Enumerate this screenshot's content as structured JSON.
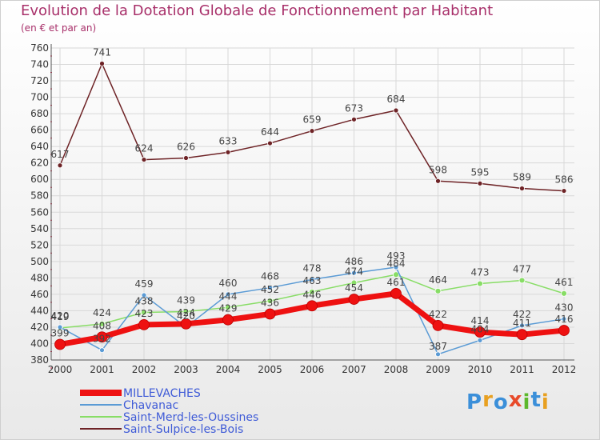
{
  "title": "Evolution de la Dotation Globale de Fonctionnement par Habitant",
  "subtitle": "(en € et par an)",
  "logo": {
    "letters": [
      "P",
      "r",
      "o",
      "x",
      "i",
      "t",
      "i"
    ],
    "colors": [
      "#3b8fd9",
      "#e8a020",
      "#3b8fd9",
      "#e84a2a",
      "#5db82c",
      "#3b8fd9",
      "#e8a020"
    ]
  },
  "chart_data": {
    "type": "line",
    "title": "Evolution de la Dotation Globale de Fonctionnement par Habitant",
    "subtitle": "(en € et par an)",
    "xlabel": "",
    "ylabel": "",
    "ylim": [
      380,
      760
    ],
    "ytick_step": 20,
    "grid": true,
    "legend_position": "bottom-left",
    "x": [
      "2000",
      "2001",
      "2002",
      "2003",
      "2004",
      "2005",
      "2006",
      "2007",
      "2008",
      "2009",
      "2010",
      "2011",
      "2012"
    ],
    "series": [
      {
        "name": "MILLEVACHES",
        "color": "#ee1111",
        "values": [
          399,
          408,
          423,
          424,
          429,
          436,
          446,
          454,
          461,
          422,
          414,
          411,
          416
        ],
        "labels": [
          "399",
          "408",
          "423",
          "424",
          "429",
          "436",
          "446",
          "454",
          "461",
          "422",
          "414",
          "411",
          "416"
        ]
      },
      {
        "name": "Chavanac",
        "color": "#5b9bd5",
        "values": [
          420,
          392,
          459,
          420,
          460,
          468,
          478,
          486,
          493,
          387,
          404,
          422,
          430
        ],
        "labels": [
          "420",
          "392",
          "459",
          "420",
          "460",
          "468",
          "478",
          "486",
          "493",
          "387",
          "404",
          "422",
          "430"
        ]
      },
      {
        "name": "Saint-Merd-les-Oussines",
        "color": "#88dd66",
        "values": [
          419,
          424,
          438,
          439,
          444,
          452,
          463,
          474,
          484,
          464,
          473,
          477,
          461
        ],
        "labels": [
          "419",
          "424",
          "438",
          "439",
          "444",
          "452",
          "463",
          "474",
          "484",
          "464",
          "473",
          "477",
          "461"
        ]
      },
      {
        "name": "Saint-Sulpice-les-Bois",
        "color": "#6e2326",
        "values": [
          617,
          741,
          624,
          626,
          633,
          644,
          659,
          673,
          684,
          598,
          595,
          589,
          586
        ],
        "labels": [
          "617",
          "741",
          "624",
          "626",
          "633",
          "644",
          "659",
          "673",
          "684",
          "598",
          "595",
          "589",
          "586"
        ]
      }
    ]
  }
}
